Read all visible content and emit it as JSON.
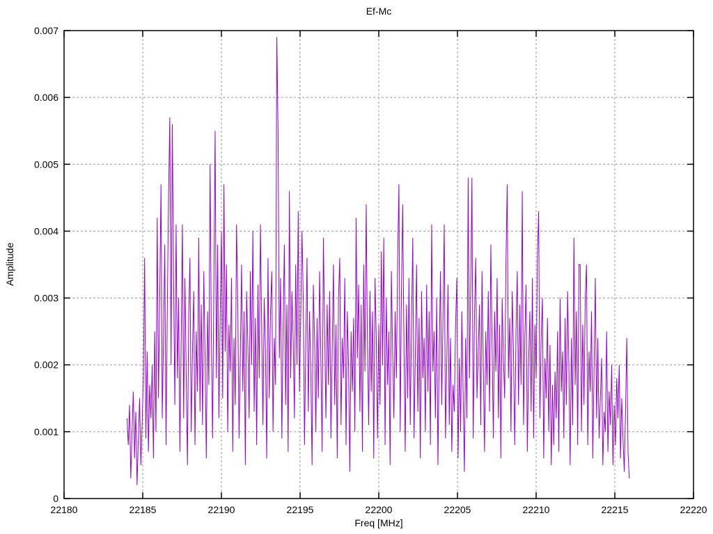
{
  "chart_data": {
    "type": "line",
    "title": "Ef-Mc",
    "xlabel": "Freq [MHz]",
    "ylabel": "Amplitude",
    "xlim": [
      22180,
      22220
    ],
    "ylim": [
      0,
      0.007
    ],
    "x_ticks": [
      22180,
      22185,
      22190,
      22195,
      22200,
      22205,
      22210,
      22215,
      22220
    ],
    "x_tick_labels": [
      "22180",
      "22185",
      "22190",
      "22195",
      "22200",
      "22205",
      "22210",
      "22215",
      "22220"
    ],
    "y_ticks": [
      0,
      0.001,
      0.002,
      0.003,
      0.004,
      0.005,
      0.006,
      0.007
    ],
    "y_tick_labels": [
      "0",
      "0.001",
      "0.002",
      "0.003",
      "0.004",
      "0.005",
      "0.006",
      "0.007"
    ],
    "grid": "dashed",
    "legend": "none",
    "colors": {
      "line": "#9400d3",
      "grid": "#999999",
      "axis": "#000000",
      "background": "#ffffff"
    },
    "series": [
      {
        "name": "Ef-Mc",
        "x_start": 22184.0,
        "x_step": 0.08,
        "amplitude_scale": 0.0001,
        "values": [
          12,
          8,
          14,
          3,
          10,
          16,
          6,
          13,
          2,
          9,
          15,
          5,
          11,
          18,
          36,
          9,
          22,
          7,
          17,
          12,
          20,
          6,
          25,
          10,
          42,
          15,
          30,
          47,
          12,
          24,
          38,
          8,
          28,
          45,
          57,
          20,
          56,
          33,
          14,
          41,
          18,
          30,
          7,
          23,
          41,
          12,
          33,
          19,
          5,
          27,
          36,
          10,
          22,
          31,
          8,
          25,
          16,
          39,
          13,
          29,
          11,
          34,
          21,
          6,
          28,
          17,
          50,
          24,
          9,
          32,
          55,
          18,
          38,
          12,
          27,
          40,
          15,
          47,
          22,
          35,
          10,
          26,
          19,
          33,
          7,
          24,
          14,
          41,
          29,
          9,
          21,
          35,
          16,
          28,
          5,
          31,
          23,
          12,
          34,
          20,
          40,
          13,
          27,
          8,
          32,
          18,
          41,
          25,
          11,
          30,
          22,
          6,
          36,
          15,
          28,
          34,
          10,
          24,
          17,
          69,
          55,
          21,
          33,
          9,
          26,
          38,
          14,
          29,
          7,
          46,
          18,
          31,
          24,
          12,
          35,
          20,
          43,
          16,
          27,
          40,
          30,
          8,
          23,
          36,
          13,
          28,
          19,
          5,
          32,
          24,
          10,
          27,
          15,
          34,
          21,
          7,
          39,
          25,
          12,
          29,
          17,
          31,
          9,
          22,
          35,
          14,
          26,
          6,
          30,
          36,
          11,
          24,
          18,
          33,
          8,
          28,
          20,
          4,
          25,
          16,
          27,
          10,
          42,
          21,
          32,
          13,
          29,
          7,
          35,
          19,
          44,
          23,
          11,
          31,
          16,
          28,
          6,
          33,
          24,
          9,
          26,
          14,
          37,
          20,
          39,
          8,
          30,
          17,
          25,
          5,
          34,
          22,
          12,
          28,
          18,
          36,
          47,
          10,
          31,
          44,
          23,
          7,
          29,
          15,
          33,
          11,
          26,
          39,
          9,
          21,
          35,
          13,
          27,
          6,
          31,
          18,
          24,
          10,
          32,
          16,
          28,
          8,
          41,
          19,
          25,
          12,
          30,
          5,
          22,
          34,
          14,
          27,
          41,
          9,
          20,
          32,
          11,
          24,
          7,
          17,
          13,
          26,
          33,
          6,
          21,
          10,
          28,
          16,
          4,
          24,
          12,
          48,
          18,
          31,
          48,
          9,
          27,
          36,
          15,
          22,
          29,
          11,
          34,
          20,
          7,
          25,
          17,
          31,
          13,
          38,
          23,
          9,
          28,
          19,
          33,
          12,
          26,
          6,
          30,
          21,
          15,
          35,
          47,
          18,
          27,
          10,
          31,
          22,
          8,
          25,
          34,
          14,
          29,
          17,
          46,
          11,
          24,
          32,
          7,
          20,
          28,
          13,
          33,
          9,
          26,
          18,
          36,
          43,
          12,
          24,
          30,
          6,
          21,
          15,
          27,
          10,
          23,
          5,
          17,
          8,
          19,
          12,
          25,
          7,
          30,
          16,
          22,
          9,
          27,
          14,
          31,
          20,
          5,
          24,
          11,
          39,
          17,
          28,
          8,
          35,
          35,
          10,
          26,
          14,
          30,
          35,
          8,
          22,
          16,
          28,
          6,
          19,
          33,
          12,
          24,
          9,
          15,
          21,
          5,
          13,
          10,
          25,
          7,
          16,
          11,
          20,
          5,
          14,
          8,
          18,
          12,
          20,
          6,
          15,
          9,
          4,
          13,
          24,
          7,
          3
        ]
      }
    ]
  }
}
